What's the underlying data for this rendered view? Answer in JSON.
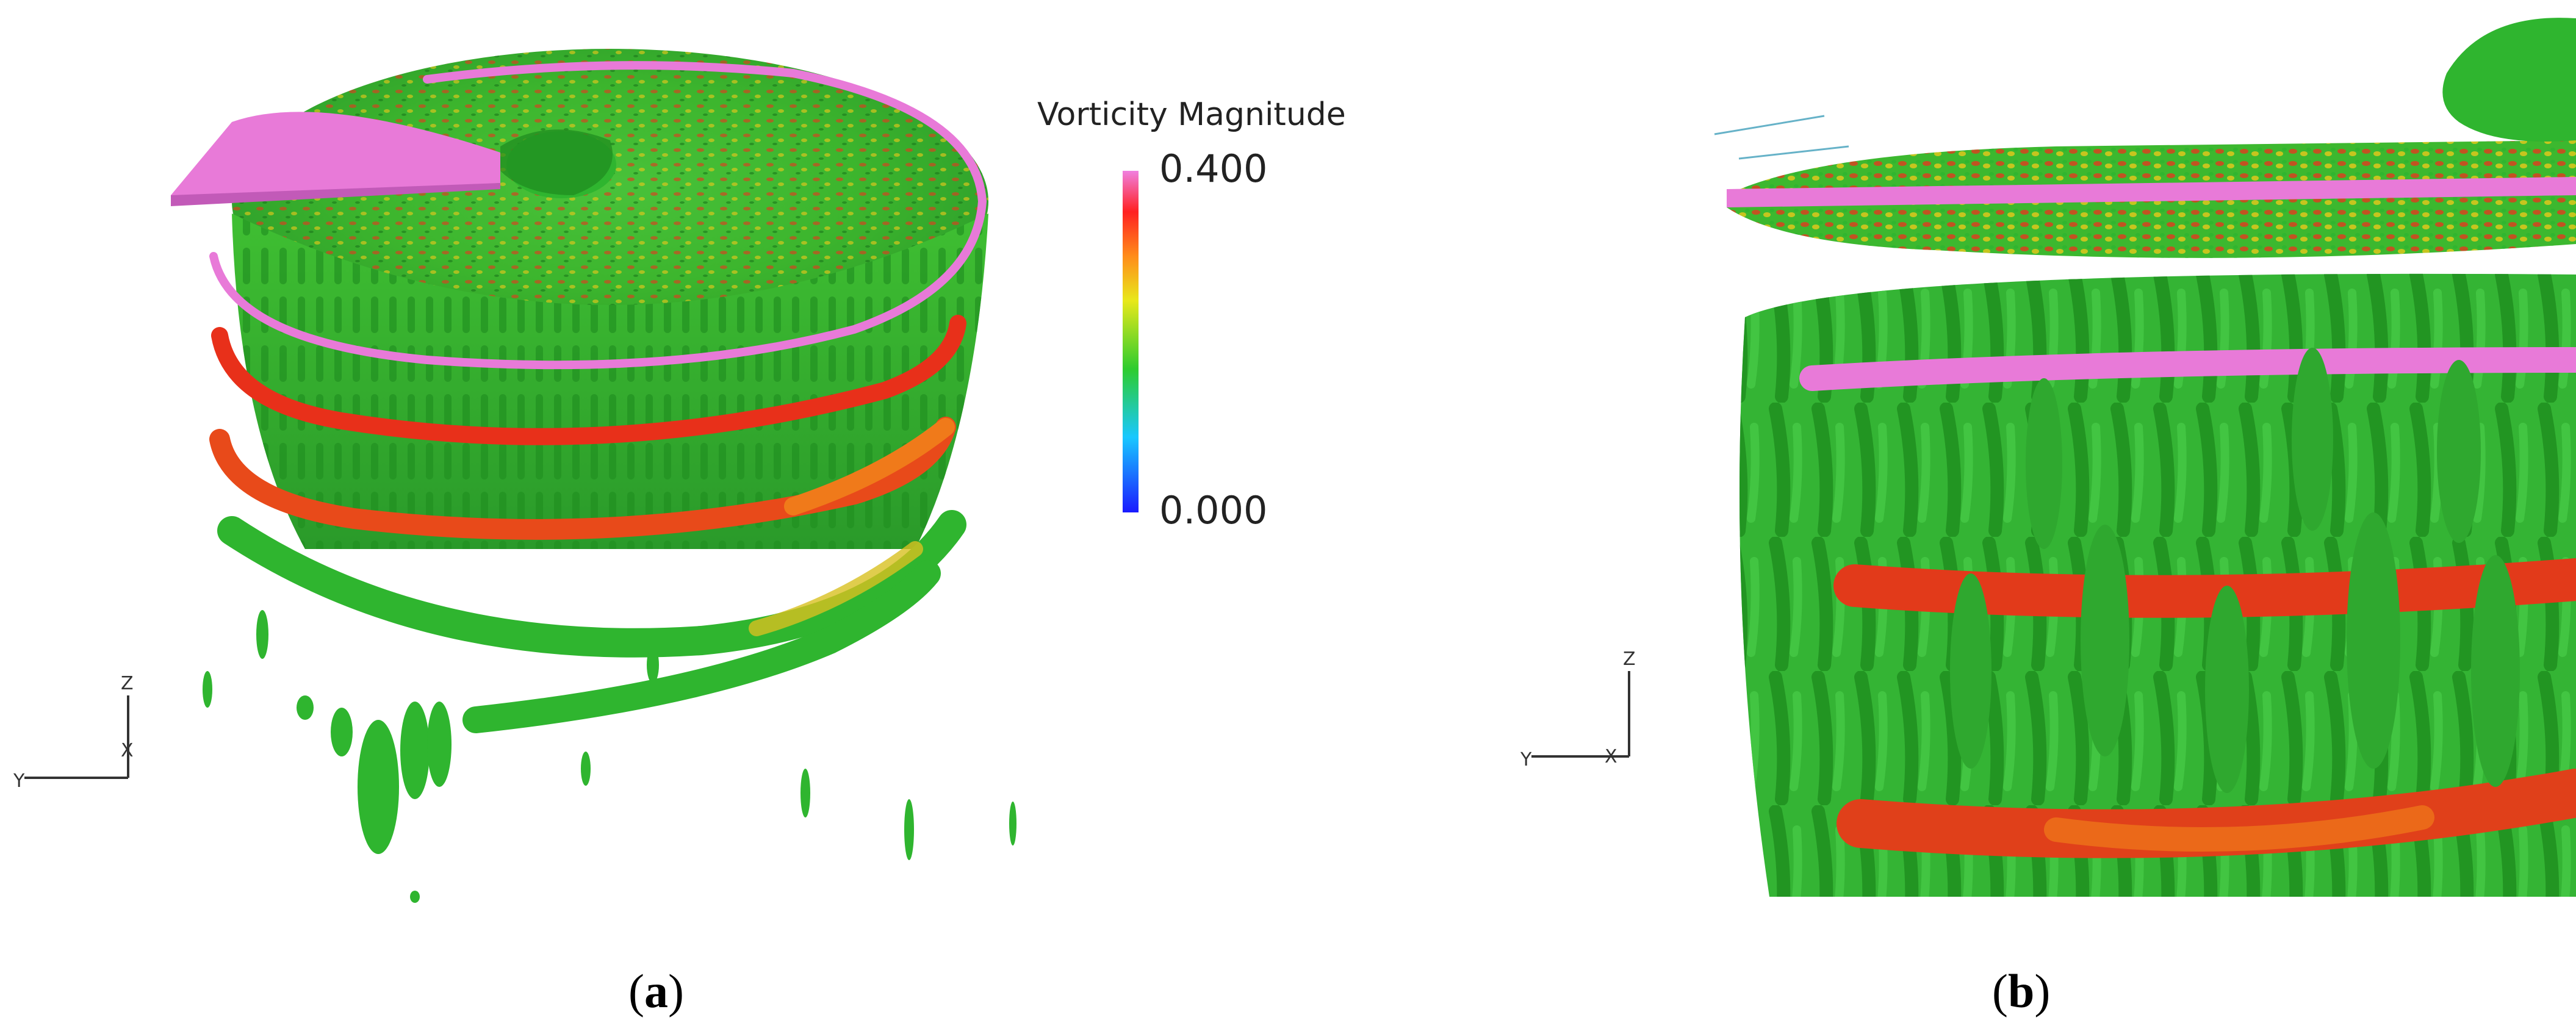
{
  "colorbar": {
    "title": "Vorticity Magnitude",
    "max": "0.400",
    "min": "0.000",
    "gradient": [
      "#1a1aff",
      "#19c8ff",
      "#2ecc2e",
      "#e8e81a",
      "#ff8c1a",
      "#ff2020",
      "#f080e0"
    ]
  },
  "axes_a": {
    "z": "Z",
    "x": "X",
    "y": "Y"
  },
  "axes_b": {
    "z": "Z",
    "x": "X",
    "y": "Y"
  },
  "captions": {
    "a": "a",
    "b": "b"
  },
  "colors": {
    "green": "#2fb52f",
    "dark_green": "#1e8a1e",
    "red": "#e8301a",
    "orange": "#f07a1a",
    "magenta": "#e87ad8",
    "yellow": "#d8d020"
  }
}
